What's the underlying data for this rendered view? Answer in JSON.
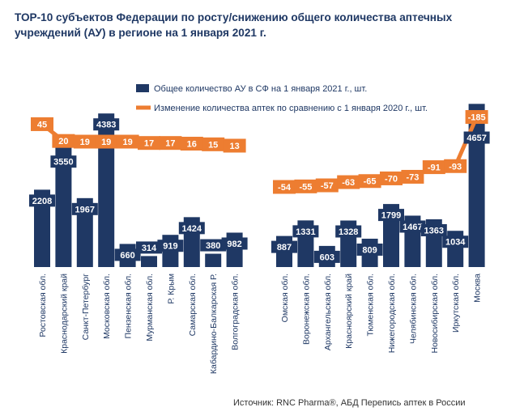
{
  "title": "ТОР-10 субъектов Федерации по росту/снижению  общего количества аптечных учреждений (АУ) в регионе  на 1 января 2021  г.",
  "source": "Источник: RNC Pharma®, АБД Перепись аптек в России",
  "colors": {
    "bar": "#1f3864",
    "line": "#ed7d31",
    "text": "#1f3864"
  },
  "chart_data": {
    "type": "bar+line",
    "legend_position": "top-center",
    "grid": false,
    "groups": [
      {
        "categories": [
          "Ростовская обл.",
          "Краснодарский край",
          "Санкт-Петербург",
          "Московская обл.",
          "Пензенская обл.",
          "Мурманская обл.",
          "Р. Крым",
          "Самарская обл.",
          "Кабардино-Балкарская Р.",
          "Волгоградская обл."
        ],
        "bars": [
          2208,
          3550,
          1967,
          4383,
          660,
          314,
          919,
          1424,
          380,
          982
        ],
        "line": [
          45,
          20,
          19,
          19,
          19,
          17,
          17,
          16,
          15,
          13
        ]
      },
      {
        "categories": [
          "Омская обл.",
          "Воронежская обл.",
          "Архангельская обл.",
          "Красноярский край",
          "Тюменская обл.",
          "Нижегородская обл.",
          "Челябинская обл.",
          "Новосибирская обл.",
          "Иркутская обл.",
          "Москва"
        ],
        "bars": [
          887,
          1331,
          603,
          1328,
          809,
          1799,
          1467,
          1363,
          1034,
          4657
        ],
        "line": [
          -54,
          -55,
          -57,
          -63,
          -65,
          -70,
          -73,
          -91,
          -93,
          -185
        ]
      }
    ],
    "series": [
      {
        "name": "Общее количество АУ в СФ на 1 января 2021 г., шт.",
        "type": "bar"
      },
      {
        "name": "Изменение количества аптек по сравнению с 1 января 2020 г., шт.",
        "type": "line"
      }
    ]
  }
}
